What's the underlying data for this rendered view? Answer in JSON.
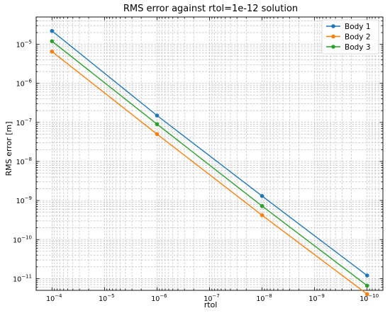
{
  "chart_data": {
    "type": "line",
    "title": "RMS error against rtol=1e-12 solution",
    "xlabel": "rtol",
    "ylabel": "RMS error [m]",
    "xscale": "log",
    "yscale": "log",
    "x_inverted": true,
    "xlim": [
      0.0002,
      5e-11
    ],
    "ylim": [
      5e-12,
      5e-05
    ],
    "x_ticks": [
      {
        "exp": -4
      },
      {
        "exp": -5
      },
      {
        "exp": -6
      },
      {
        "exp": -7
      },
      {
        "exp": -8
      },
      {
        "exp": -9
      },
      {
        "exp": -10
      }
    ],
    "y_ticks": [
      {
        "exp": -11
      },
      {
        "exp": -10
      },
      {
        "exp": -9
      },
      {
        "exp": -8
      },
      {
        "exp": -7
      },
      {
        "exp": -6
      },
      {
        "exp": -5
      }
    ],
    "grid": true,
    "legend_position": "top-right",
    "x": [
      0.0001,
      1e-06,
      1e-08,
      1e-10
    ],
    "series": [
      {
        "name": "Body 1",
        "color": "#1f77b4",
        "values": [
          2.2e-05,
          1.5e-07,
          1.3e-09,
          1.2e-11
        ]
      },
      {
        "name": "Body 2",
        "color": "#ff7f0e",
        "values": [
          6.5e-06,
          5e-08,
          4.2e-10,
          4e-12
        ]
      },
      {
        "name": "Body 3",
        "color": "#2ca02c",
        "values": [
          1.2e-05,
          9e-08,
          7.2e-10,
          6.6e-12
        ]
      }
    ]
  }
}
